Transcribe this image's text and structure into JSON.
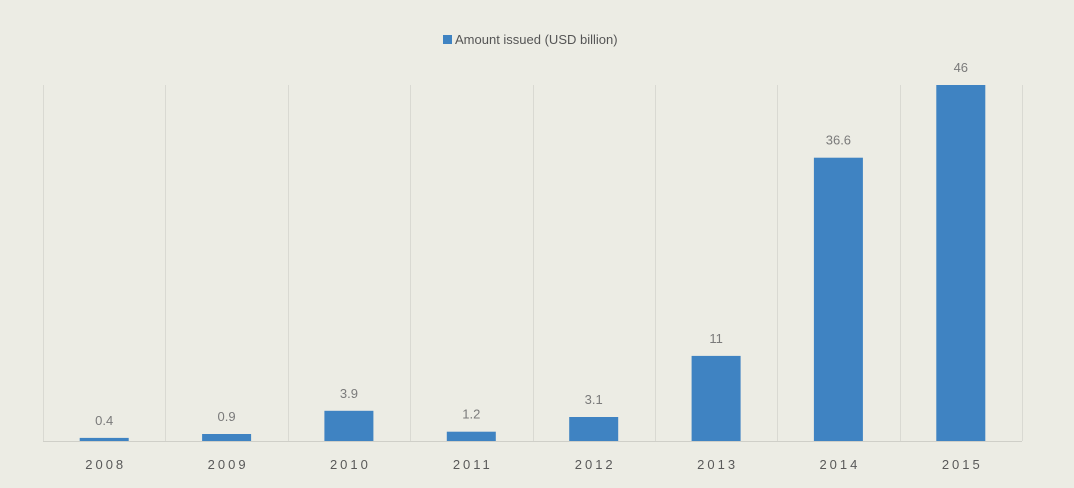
{
  "chart_data": {
    "type": "bar",
    "categories": [
      "2008",
      "2009",
      "2010",
      "2011",
      "2012",
      "2013",
      "2014",
      "2015"
    ],
    "series": [
      {
        "name": "Amount issued (USD billion)",
        "values": [
          0.4,
          0.9,
          3.9,
          1.2,
          3.1,
          11,
          36.6,
          46
        ],
        "data_labels": [
          "0.4",
          "0.9",
          "3.9",
          "1.2",
          "3.1",
          "11",
          "36.6",
          "46"
        ]
      }
    ],
    "title": "",
    "xlabel": "",
    "ylabel": "",
    "ylim": [
      0,
      46
    ],
    "grid": "vertical",
    "legend_position": "top-center",
    "colors": {
      "background": "#ecece4",
      "bar": "#3f83c2",
      "grid": "#d9d9d2",
      "axis": "#cfcfc8"
    }
  }
}
